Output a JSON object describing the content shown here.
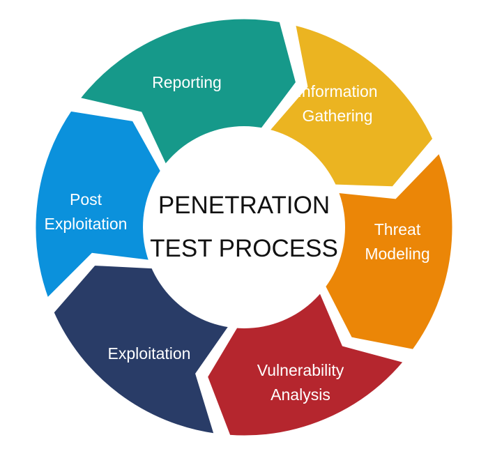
{
  "diagram": {
    "center": {
      "line1": "PENETRATION",
      "line2": "TEST PROCESS"
    },
    "stages": [
      {
        "id": "reporting",
        "lines": [
          "Reporting"
        ],
        "color": "#16998a"
      },
      {
        "id": "information-gathering",
        "lines": [
          "Information",
          "Gathering"
        ],
        "color": "#ebb421"
      },
      {
        "id": "threat-modeling",
        "lines": [
          "Threat",
          "Modeling"
        ],
        "color": "#eb8607"
      },
      {
        "id": "vulnerability-analysis",
        "lines": [
          "Vulnerability",
          "Analysis"
        ],
        "color": "#b5262e"
      },
      {
        "id": "exploitation",
        "lines": [
          "Exploitation"
        ],
        "color": "#293c67"
      },
      {
        "id": "post-exploitation",
        "lines": [
          "Post",
          "Exploitation"
        ],
        "color": "#0b91dc"
      }
    ]
  }
}
